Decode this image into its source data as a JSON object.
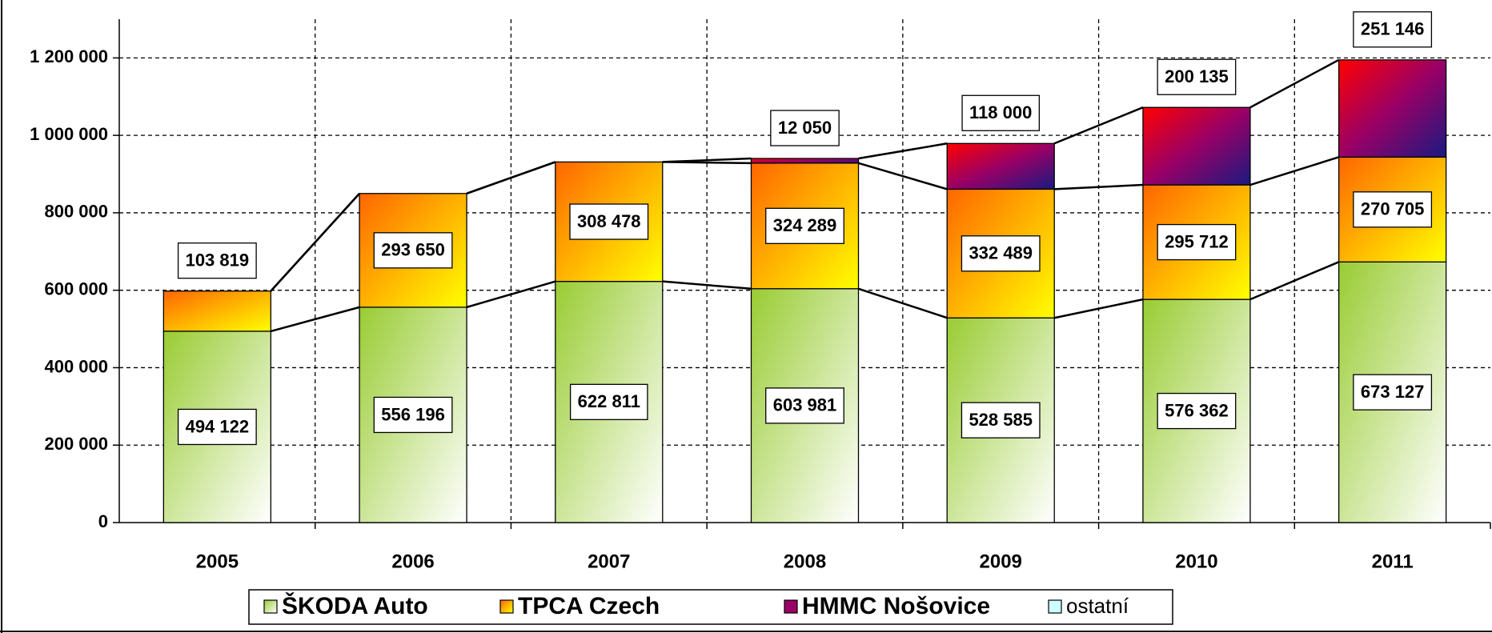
{
  "chart_data": {
    "type": "stacked_bar",
    "categories": [
      "2005",
      "2006",
      "2007",
      "2008",
      "2009",
      "2010",
      "2011"
    ],
    "series": [
      {
        "name": "ŠKODA Auto",
        "colors": [
          "#99cc33",
          "#ffffff"
        ],
        "values": [
          494122,
          556196,
          622811,
          603981,
          528585,
          576362,
          673127
        ],
        "value_labels": [
          "494 122",
          "556 196",
          "622 811",
          "603 981",
          "528 585",
          "576 362",
          "673 127"
        ]
      },
      {
        "name": "TPCA Czech",
        "colors": [
          "#ff6600",
          "#ffff00"
        ],
        "values": [
          103819,
          293650,
          308478,
          324289,
          332489,
          295712,
          270705
        ],
        "value_labels": [
          "103 819",
          "293 650",
          "308 478",
          "324 289",
          "332 489",
          "295 712",
          "270 705"
        ]
      },
      {
        "name": "HMMC Nošovice",
        "colors": [
          "#ff0000",
          "#990066",
          "#1a1a80"
        ],
        "values": [
          null,
          null,
          null,
          12050,
          118000,
          200135,
          251146
        ],
        "value_labels": [
          null,
          null,
          null,
          "12 050",
          "118 000",
          "200 135",
          "251 146"
        ]
      },
      {
        "name": "ostatní",
        "colors": [
          "#ccffff",
          "#ccffff"
        ],
        "values": [
          null,
          null,
          null,
          null,
          null,
          null,
          null
        ]
      }
    ],
    "ylim": [
      0,
      1300000
    ],
    "yticks": [
      0,
      {
        "value": 200000,
        "label": "200 000"
      },
      {
        "value": 400000,
        "label": "400 000"
      },
      {
        "value": 600000,
        "label": "600 000"
      },
      {
        "value": 800000,
        "label": "800 000"
      },
      {
        "value": 1000000,
        "label": "1 000 000"
      },
      {
        "value": 1200000,
        "label": "1 200 000"
      }
    ],
    "grid": true,
    "legend": "bottom"
  }
}
